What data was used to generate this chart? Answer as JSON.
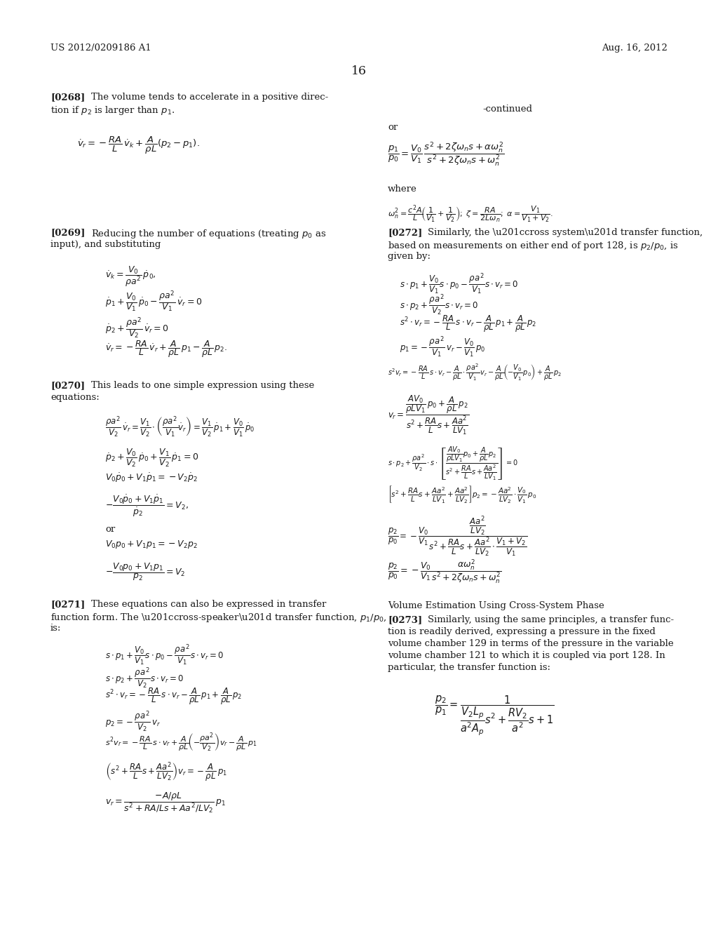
{
  "page_number": "16",
  "header_left": "US 2012/0209186 A1",
  "header_right": "Aug. 16, 2012",
  "background_color": "#ffffff",
  "text_color": "#1a1a1a",
  "continued_label": "-continued",
  "font_size_body": 9.5,
  "font_size_eq": 9.0
}
